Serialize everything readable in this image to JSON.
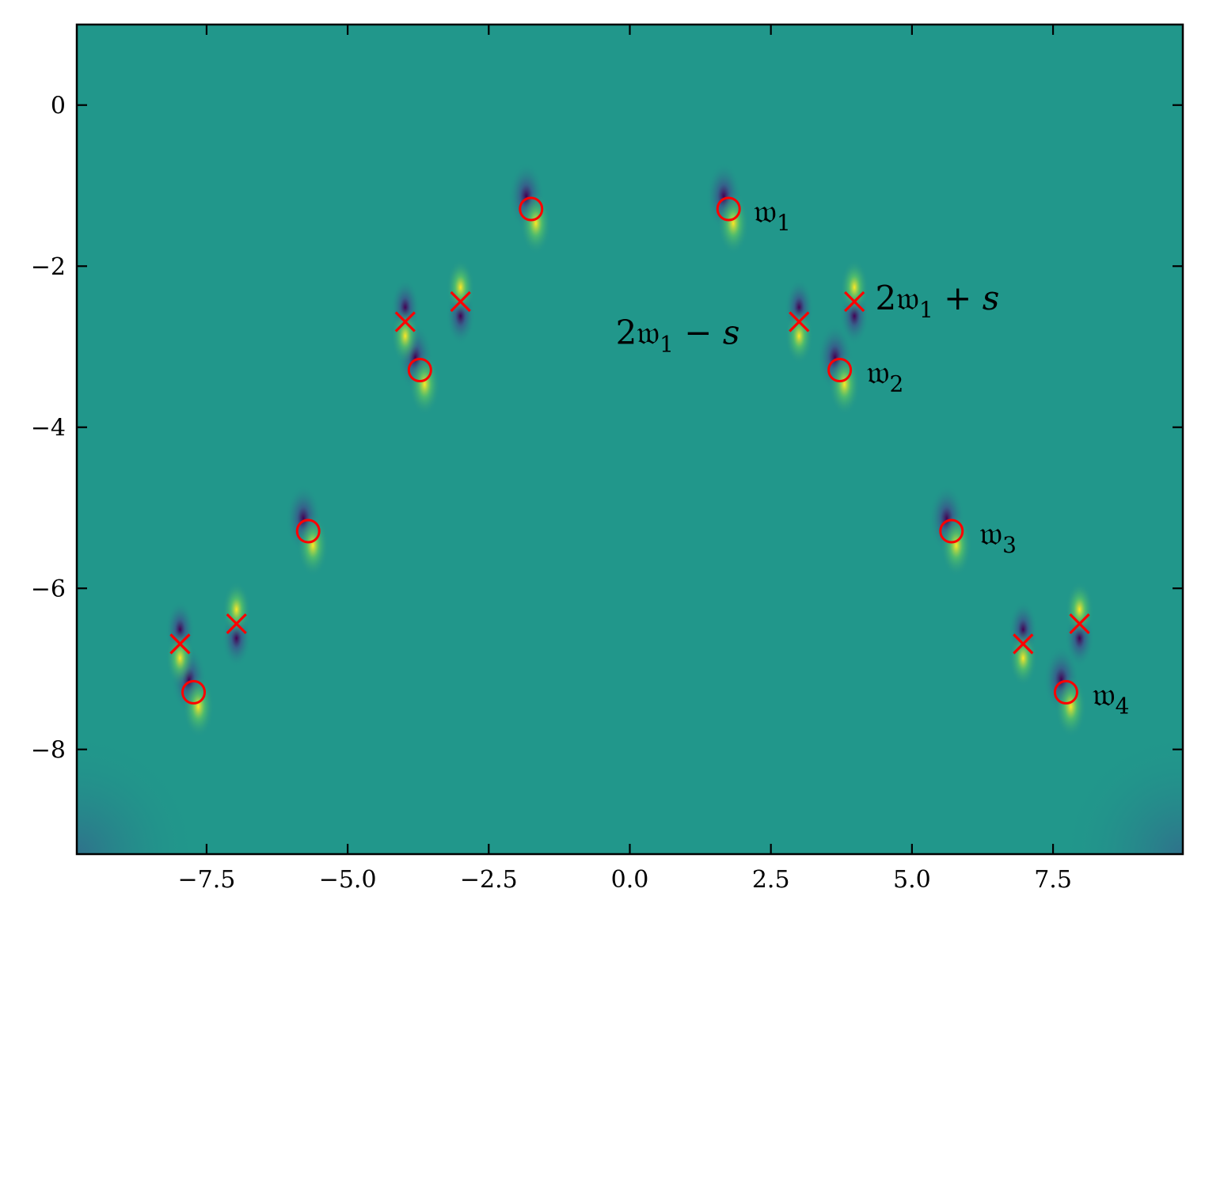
{
  "chart_data": {
    "type": "heatmap",
    "title": "",
    "xlabel": "",
    "ylabel": "",
    "xlim": [
      -9.8,
      9.8
    ],
    "ylim": [
      -9.3,
      1.0
    ],
    "xticks": [
      -7.5,
      -5.0,
      -2.5,
      0.0,
      2.5,
      5.0,
      7.5
    ],
    "xtick_labels": [
      "−7.5",
      "−5.0",
      "−2.5",
      "0.0",
      "2.5",
      "5.0",
      "7.5"
    ],
    "yticks": [
      0,
      -2,
      -4,
      -6,
      -8
    ],
    "ytick_labels": [
      "0",
      "−2",
      "−4",
      "−6",
      "−8"
    ],
    "colormap": [
      "#440154",
      "#3b528b",
      "#21918c",
      "#5ec962",
      "#fde725"
    ],
    "background_color": "#21978b",
    "marker_color": "#ff0000",
    "circles": [
      {
        "x": 1.75,
        "y": -1.29
      },
      {
        "x": -1.75,
        "y": -1.29
      },
      {
        "x": 3.72,
        "y": -3.29
      },
      {
        "x": -3.72,
        "y": -3.29
      },
      {
        "x": 5.7,
        "y": -5.29
      },
      {
        "x": -5.7,
        "y": -5.29
      },
      {
        "x": 7.73,
        "y": -7.29
      },
      {
        "x": -7.73,
        "y": -7.29
      }
    ],
    "crosses": [
      {
        "x": 3.0,
        "y": -2.69
      },
      {
        "x": 3.98,
        "y": -2.44
      },
      {
        "x": -3.0,
        "y": -2.44
      },
      {
        "x": -3.98,
        "y": -2.69
      },
      {
        "x": 6.97,
        "y": -6.69
      },
      {
        "x": 7.97,
        "y": -6.44
      },
      {
        "x": -6.97,
        "y": -6.44
      },
      {
        "x": -7.97,
        "y": -6.69
      }
    ],
    "annotations": [
      {
        "main": "𝔴",
        "sub": "1",
        "suffix": "",
        "x": 2.2,
        "y": -1.32,
        "anchor": "start"
      },
      {
        "main": "𝔴",
        "sub": "2",
        "suffix": "",
        "x": 4.2,
        "y": -3.32,
        "anchor": "start"
      },
      {
        "main": "𝔴",
        "sub": "3",
        "suffix": "",
        "x": 6.2,
        "y": -5.32,
        "anchor": "start"
      },
      {
        "main": "𝔴",
        "sub": "4",
        "suffix": "",
        "x": 8.2,
        "y": -7.32,
        "anchor": "start"
      },
      {
        "main": "2𝔴",
        "sub": "1",
        "suffix": " + s",
        "x": 4.35,
        "y": -2.4,
        "anchor": "start"
      },
      {
        "main": "2𝔴",
        "sub": "1",
        "suffix": " − s",
        "x": -0.25,
        "y": -2.83,
        "anchor": "start"
      }
    ]
  }
}
